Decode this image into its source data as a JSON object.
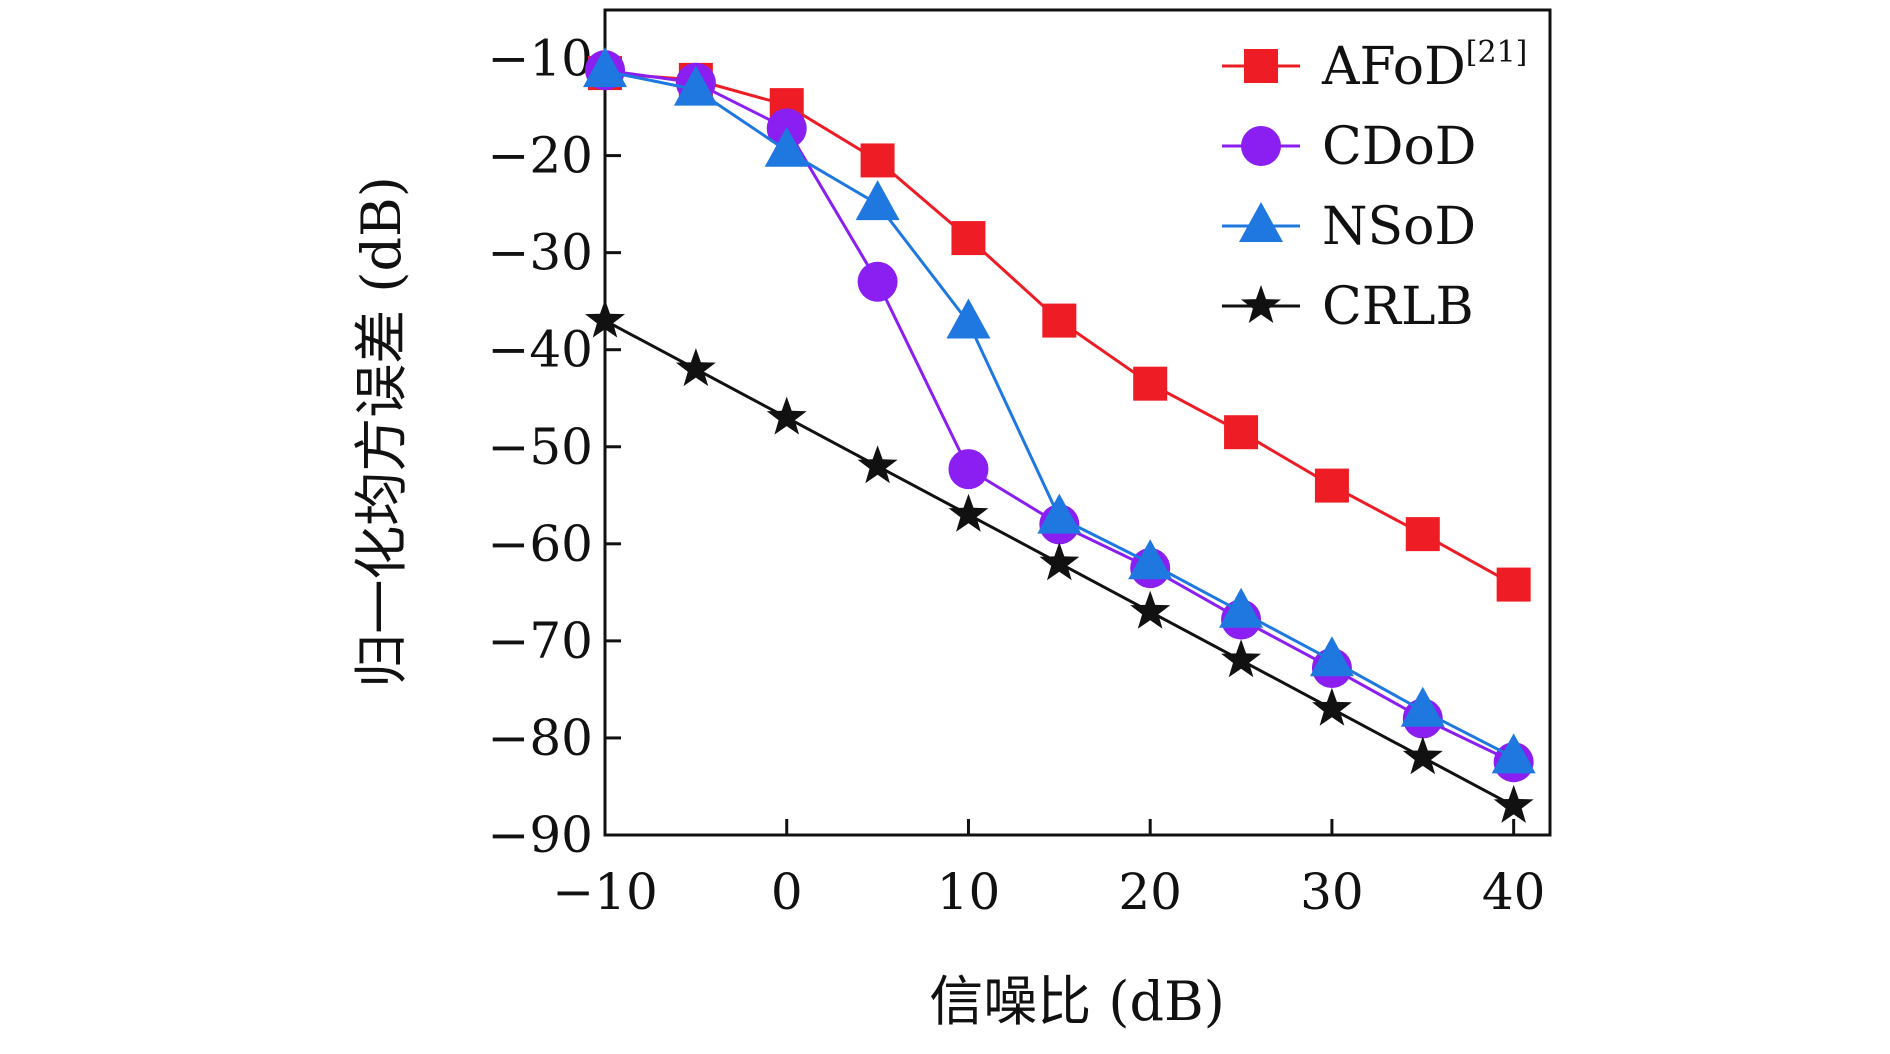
{
  "chart_data": {
    "type": "line",
    "xlabel": "信噪比 (dB)",
    "ylabel": "归一化均方误差 (dB)",
    "xlim": [
      -10,
      42
    ],
    "ylim": [
      -90,
      -5
    ],
    "x_ticks": [
      -10,
      0,
      10,
      20,
      30,
      40
    ],
    "x_tick_labels": [
      "−10",
      "0",
      "10",
      "20",
      "30",
      "40"
    ],
    "y_ticks": [
      -10,
      -20,
      -30,
      -40,
      -50,
      -60,
      -70,
      -80,
      -90
    ],
    "y_tick_labels": [
      "−10",
      "−20",
      "−30",
      "−40",
      "−50",
      "−60",
      "−70",
      "−80",
      "−90"
    ],
    "x": [
      -10,
      -5,
      0,
      5,
      10,
      15,
      20,
      25,
      30,
      35,
      40
    ],
    "grid": false,
    "legend_position": "top-right",
    "series": [
      {
        "name": "AFoD",
        "name_sup": "[21]",
        "marker": "square",
        "color": "#ee1c25",
        "values": [
          -11.5,
          -12.2,
          -14.8,
          -20.5,
          -28.5,
          -37,
          -43.5,
          -48.5,
          -54,
          -59,
          -64.2
        ]
      },
      {
        "name": "CDoD",
        "marker": "circle",
        "color": "#8b1ef0",
        "values": [
          -11.2,
          -12.5,
          -17.2,
          -33,
          -52.3,
          -58,
          -62.5,
          -67.8,
          -72.8,
          -78,
          -82.5
        ]
      },
      {
        "name": "NSoD",
        "marker": "triangle",
        "color": "#1f78e0",
        "values": [
          -11.3,
          -13.2,
          -19.5,
          -25,
          -37.2,
          -57.3,
          -62,
          -67,
          -72,
          -77.2,
          -82
        ]
      },
      {
        "name": "CRLB",
        "marker": "star",
        "color": "#111111",
        "values": [
          -37,
          -42,
          -47,
          -52,
          -57,
          -62,
          -67,
          -72,
          -77,
          -82,
          -87
        ]
      }
    ]
  }
}
